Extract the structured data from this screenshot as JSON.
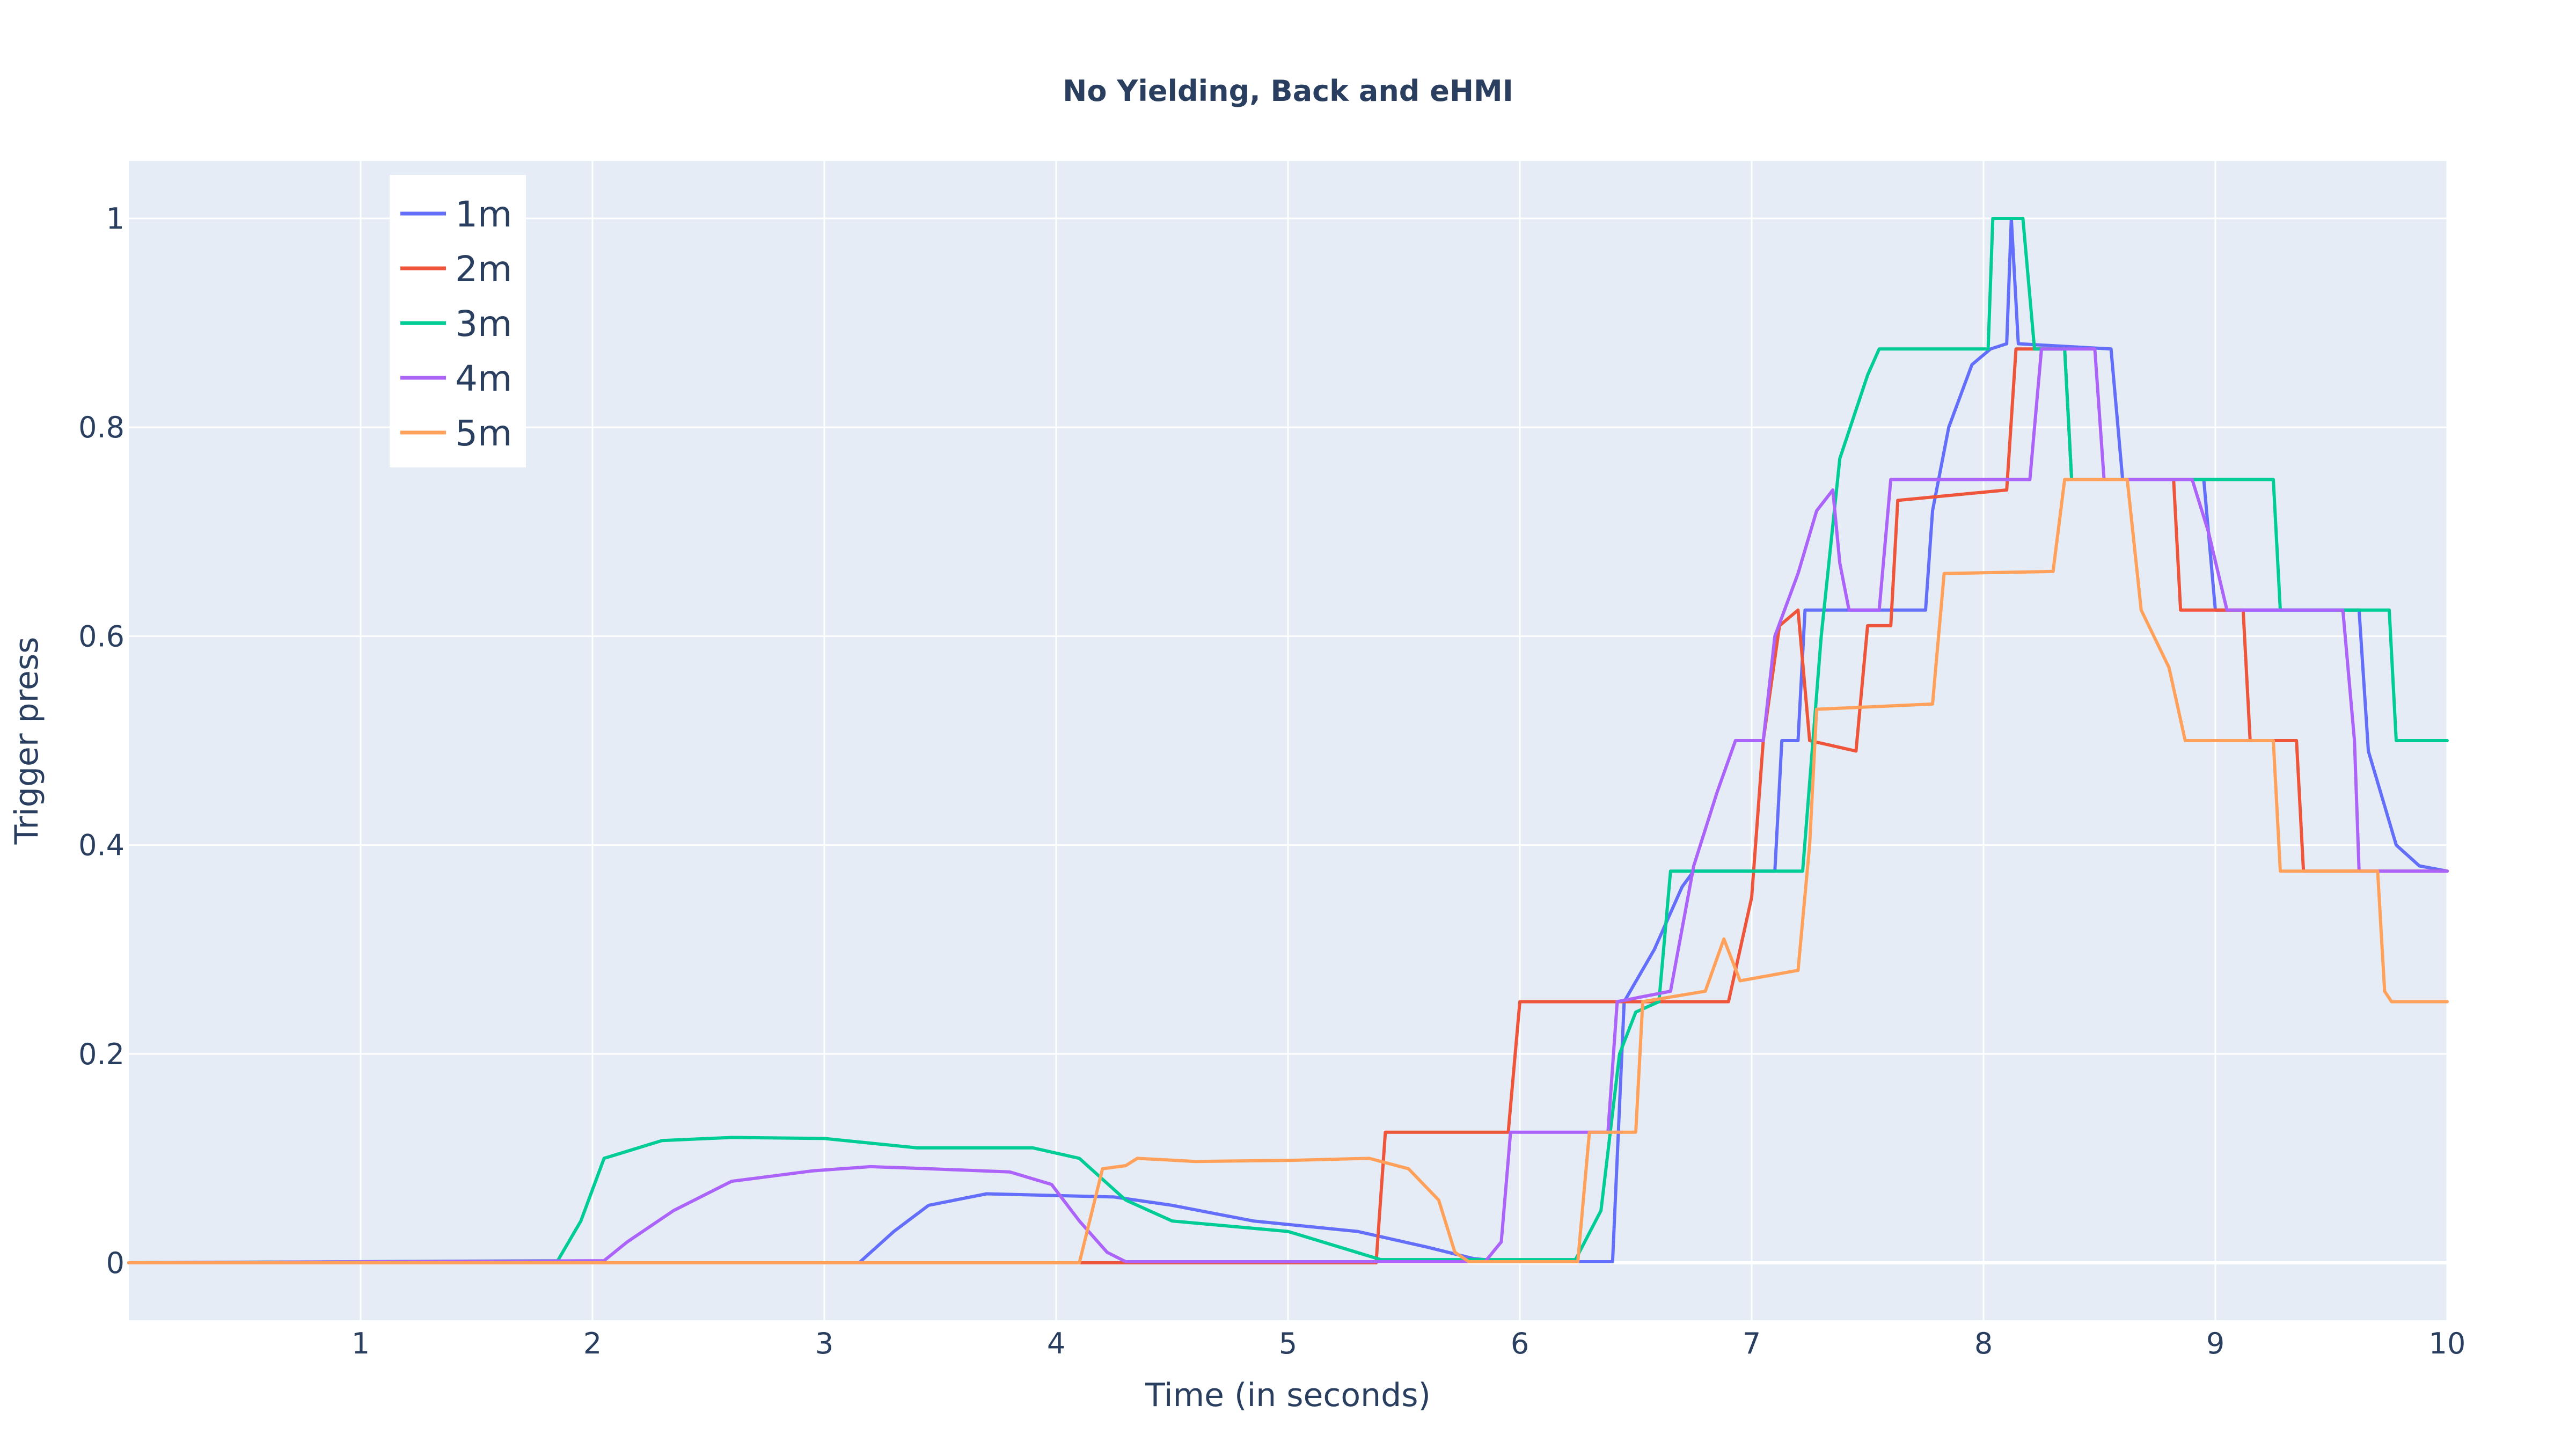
{
  "chart_data": {
    "type": "line",
    "title": "No Yielding, Back and eHMI",
    "xlabel": "Time (in seconds)",
    "ylabel": "Trigger press",
    "xlim": [
      0,
      10
    ],
    "ylim": [
      -0.055,
      1.055
    ],
    "x_ticks": [
      1,
      2,
      3,
      4,
      5,
      6,
      7,
      8,
      9,
      10
    ],
    "x_tick_labels": [
      "1",
      "2",
      "3",
      "4",
      "5",
      "6",
      "7",
      "8",
      "9",
      "10"
    ],
    "y_ticks": [
      0,
      0.2,
      0.4,
      0.6,
      0.8,
      1
    ],
    "y_tick_labels": [
      "0",
      "0.2",
      "0.4",
      "0.6",
      "0.8",
      "1"
    ],
    "grid": true,
    "legend_position": "top-left",
    "plot_background": "#e5ecf6",
    "series": [
      {
        "name": "1m",
        "color": "#636efa",
        "points": [
          [
            0,
            0
          ],
          [
            3.15,
            0
          ],
          [
            3.3,
            0.03
          ],
          [
            3.45,
            0.055
          ],
          [
            3.7,
            0.066
          ],
          [
            4.25,
            0.063
          ],
          [
            4.5,
            0.055
          ],
          [
            4.85,
            0.04
          ],
          [
            5.3,
            0.03
          ],
          [
            5.6,
            0.015
          ],
          [
            5.8,
            0.004
          ],
          [
            5.95,
            0.001
          ],
          [
            6.4,
            0.001
          ],
          [
            6.45,
            0.25
          ],
          [
            6.58,
            0.3
          ],
          [
            6.7,
            0.36
          ],
          [
            6.75,
            0.375
          ],
          [
            7.1,
            0.375
          ],
          [
            7.13,
            0.5
          ],
          [
            7.2,
            0.5
          ],
          [
            7.23,
            0.625
          ],
          [
            7.75,
            0.625
          ],
          [
            7.78,
            0.72
          ],
          [
            7.85,
            0.8
          ],
          [
            7.95,
            0.86
          ],
          [
            8.03,
            0.875
          ],
          [
            8.1,
            0.88
          ],
          [
            8.12,
            1
          ],
          [
            8.15,
            0.88
          ],
          [
            8.55,
            0.875
          ],
          [
            8.6,
            0.75
          ],
          [
            8.95,
            0.75
          ],
          [
            9,
            0.625
          ],
          [
            9.62,
            0.625
          ],
          [
            9.66,
            0.49
          ],
          [
            9.78,
            0.4
          ],
          [
            9.88,
            0.38
          ],
          [
            10,
            0.375
          ]
        ]
      },
      {
        "name": "2m",
        "color": "#ef553b",
        "points": [
          [
            0,
            0
          ],
          [
            5.38,
            0
          ],
          [
            5.42,
            0.125
          ],
          [
            5.95,
            0.125
          ],
          [
            6,
            0.25
          ],
          [
            6.9,
            0.25
          ],
          [
            7.0,
            0.35
          ],
          [
            7.05,
            0.5
          ],
          [
            7.12,
            0.61
          ],
          [
            7.2,
            0.625
          ],
          [
            7.25,
            0.5
          ],
          [
            7.45,
            0.49
          ],
          [
            7.5,
            0.61
          ],
          [
            7.6,
            0.61
          ],
          [
            7.63,
            0.73
          ],
          [
            8.1,
            0.74
          ],
          [
            8.14,
            0.875
          ],
          [
            8.35,
            0.875
          ],
          [
            8.38,
            0.75
          ],
          [
            8.82,
            0.75
          ],
          [
            8.85,
            0.625
          ],
          [
            9.12,
            0.625
          ],
          [
            9.15,
            0.5
          ],
          [
            9.35,
            0.5
          ],
          [
            9.38,
            0.375
          ],
          [
            10,
            0.375
          ]
        ]
      },
      {
        "name": "3m",
        "color": "#00cc96",
        "points": [
          [
            0,
            0
          ],
          [
            1.85,
            0.002
          ],
          [
            1.95,
            0.04
          ],
          [
            2.05,
            0.1
          ],
          [
            2.3,
            0.117
          ],
          [
            2.6,
            0.12
          ],
          [
            3.0,
            0.119
          ],
          [
            3.4,
            0.11
          ],
          [
            3.9,
            0.11
          ],
          [
            4.1,
            0.1
          ],
          [
            4.3,
            0.06
          ],
          [
            4.5,
            0.04
          ],
          [
            5.0,
            0.03
          ],
          [
            5.4,
            0.003
          ],
          [
            6.24,
            0.003
          ],
          [
            6.35,
            0.05
          ],
          [
            6.43,
            0.2
          ],
          [
            6.5,
            0.24
          ],
          [
            6.6,
            0.25
          ],
          [
            6.65,
            0.375
          ],
          [
            7.22,
            0.375
          ],
          [
            7.3,
            0.6
          ],
          [
            7.38,
            0.77
          ],
          [
            7.5,
            0.85
          ],
          [
            7.55,
            0.875
          ],
          [
            8.02,
            0.875
          ],
          [
            8.04,
            1
          ],
          [
            8.17,
            1
          ],
          [
            8.22,
            0.875
          ],
          [
            8.35,
            0.875
          ],
          [
            8.38,
            0.75
          ],
          [
            9.25,
            0.75
          ],
          [
            9.28,
            0.625
          ],
          [
            9.75,
            0.625
          ],
          [
            9.78,
            0.5
          ],
          [
            10,
            0.5
          ]
        ]
      },
      {
        "name": "4m",
        "color": "#ab63fa",
        "points": [
          [
            0,
            0
          ],
          [
            2.05,
            0.002
          ],
          [
            2.15,
            0.02
          ],
          [
            2.35,
            0.05
          ],
          [
            2.6,
            0.078
          ],
          [
            2.95,
            0.088
          ],
          [
            3.2,
            0.092
          ],
          [
            3.45,
            0.09
          ],
          [
            3.8,
            0.087
          ],
          [
            3.98,
            0.075
          ],
          [
            4.1,
            0.04
          ],
          [
            4.22,
            0.01
          ],
          [
            4.3,
            0.001
          ],
          [
            5.85,
            0.001
          ],
          [
            5.92,
            0.02
          ],
          [
            5.96,
            0.125
          ],
          [
            6.38,
            0.125
          ],
          [
            6.42,
            0.25
          ],
          [
            6.65,
            0.26
          ],
          [
            6.75,
            0.38
          ],
          [
            6.85,
            0.45
          ],
          [
            6.93,
            0.5
          ],
          [
            7.05,
            0.5
          ],
          [
            7.1,
            0.6
          ],
          [
            7.2,
            0.66
          ],
          [
            7.28,
            0.72
          ],
          [
            7.35,
            0.74
          ],
          [
            7.38,
            0.67
          ],
          [
            7.42,
            0.625
          ],
          [
            7.55,
            0.625
          ],
          [
            7.6,
            0.75
          ],
          [
            8.2,
            0.75
          ],
          [
            8.25,
            0.875
          ],
          [
            8.48,
            0.875
          ],
          [
            8.52,
            0.75
          ],
          [
            8.9,
            0.75
          ],
          [
            8.97,
            0.7
          ],
          [
            9.05,
            0.625
          ],
          [
            9.55,
            0.625
          ],
          [
            9.6,
            0.5
          ],
          [
            9.62,
            0.375
          ],
          [
            10,
            0.375
          ]
        ]
      },
      {
        "name": "5m",
        "color": "#ffa15a",
        "points": [
          [
            0,
            0
          ],
          [
            4.1,
            0
          ],
          [
            4.2,
            0.09
          ],
          [
            4.3,
            0.093
          ],
          [
            4.35,
            0.1
          ],
          [
            4.6,
            0.097
          ],
          [
            5.0,
            0.098
          ],
          [
            5.35,
            0.1
          ],
          [
            5.52,
            0.09
          ],
          [
            5.65,
            0.06
          ],
          [
            5.72,
            0.01
          ],
          [
            5.78,
            0.001
          ],
          [
            6.25,
            0.001
          ],
          [
            6.3,
            0.125
          ],
          [
            6.5,
            0.125
          ],
          [
            6.53,
            0.25
          ],
          [
            6.8,
            0.26
          ],
          [
            6.88,
            0.31
          ],
          [
            6.95,
            0.27
          ],
          [
            7.2,
            0.28
          ],
          [
            7.25,
            0.4
          ],
          [
            7.28,
            0.53
          ],
          [
            7.78,
            0.535
          ],
          [
            7.83,
            0.66
          ],
          [
            8.3,
            0.662
          ],
          [
            8.35,
            0.75
          ],
          [
            8.62,
            0.75
          ],
          [
            8.68,
            0.625
          ],
          [
            8.8,
            0.57
          ],
          [
            8.87,
            0.5
          ],
          [
            9.25,
            0.5
          ],
          [
            9.28,
            0.375
          ],
          [
            9.7,
            0.375
          ],
          [
            9.73,
            0.26
          ],
          [
            9.76,
            0.25
          ],
          [
            10,
            0.25
          ]
        ]
      }
    ]
  }
}
